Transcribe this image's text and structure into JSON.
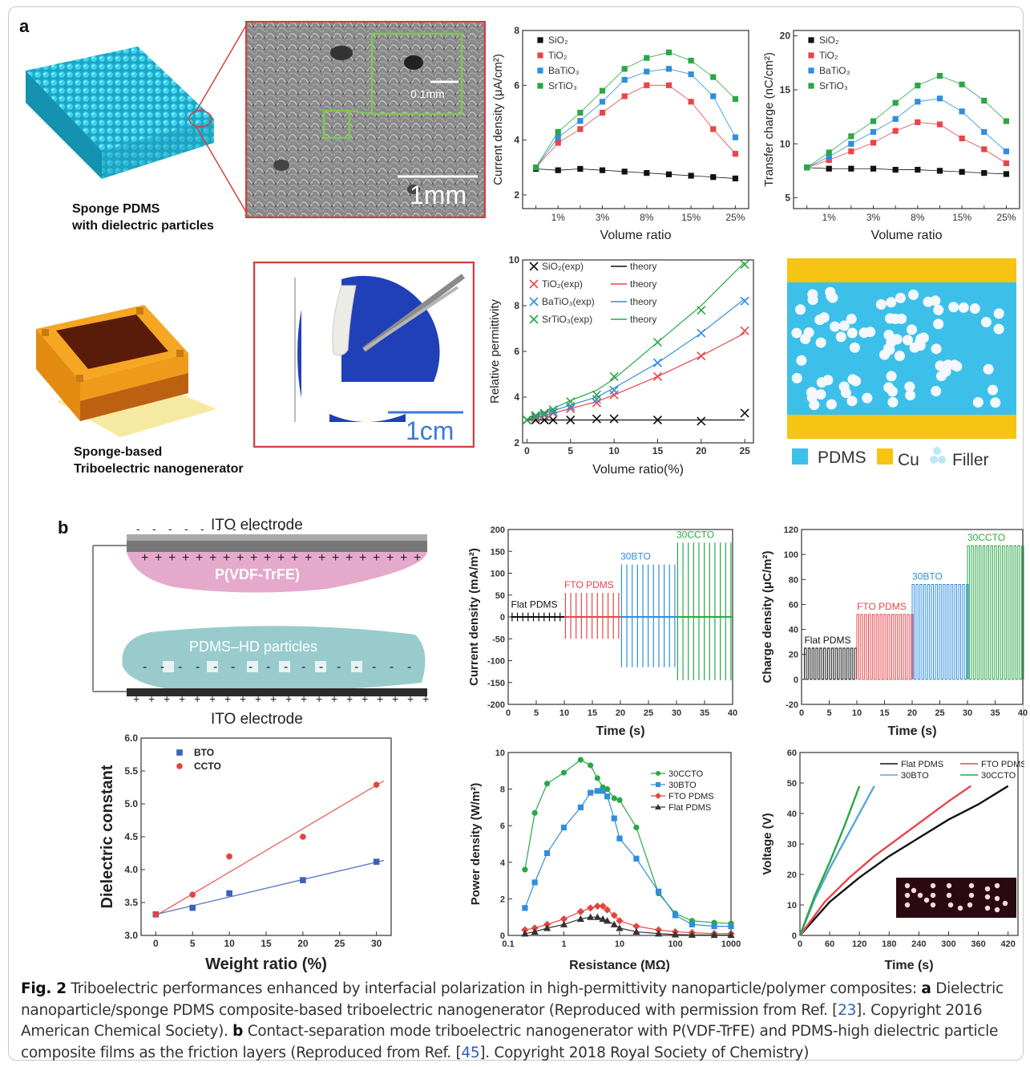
{
  "panel_labels": {
    "a": "a",
    "b": "b"
  },
  "photos": {
    "sponge_label_line1": "Sponge PDMS",
    "sponge_label_line2": "with dielectric particles",
    "teng_label_line1": "Sponge-based",
    "teng_label_line2": "Triboelectric nanogenerator",
    "sem_scale_inset": "0.1mm",
    "sem_scale_main": "1mm",
    "photo_scale": "1cm",
    "schematic_top_electrode": "ITO electrode",
    "schematic_bottom_electrode": "ITO electrode",
    "schematic_top_layer": "P(VDF-TrFE)",
    "schematic_bottom_layer": "PDMS–HD particles"
  },
  "schematic_legend": [
    {
      "label": "PDMS",
      "color": "#3cc0ea"
    },
    {
      "label": "Cu",
      "color": "#f6c412"
    },
    {
      "label": "Filler",
      "color": "#bfe6f5"
    }
  ],
  "colors": {
    "black": "#111111",
    "red": "#e8454b",
    "blue": "#2f8ede",
    "green": "#2aa746",
    "bto_blue": "#3d5fb8",
    "ccto_red": "#e0453e"
  },
  "chart_data": [
    {
      "id": "a_current",
      "type": "line",
      "ylabel": "Current density (μA/cm²)",
      "xlabel": "Volume ratio",
      "categories": [
        "",
        "1%",
        "",
        "3%",
        "",
        "8%",
        "",
        "15%",
        "",
        "25%"
      ],
      "ylim": [
        1.5,
        8
      ],
      "yticks": [
        2,
        4,
        6,
        8
      ],
      "legend": "top-left",
      "series": [
        {
          "name": "SiO₂",
          "color": "#111111",
          "values": [
            2.95,
            2.9,
            2.95,
            2.9,
            2.85,
            2.8,
            2.75,
            2.7,
            2.65,
            2.6
          ]
        },
        {
          "name": "TiO₂",
          "color": "#e8454b",
          "values": [
            3.0,
            3.9,
            4.4,
            5.0,
            5.6,
            6.0,
            6.0,
            5.4,
            4.4,
            3.5
          ]
        },
        {
          "name": "BaTiO₃",
          "color": "#2f8ede",
          "values": [
            3.0,
            4.1,
            4.7,
            5.4,
            6.2,
            6.5,
            6.6,
            6.4,
            5.6,
            4.1
          ]
        },
        {
          "name": "SrTiO₃",
          "color": "#2aa746",
          "values": [
            3.0,
            4.3,
            5.0,
            5.8,
            6.6,
            7.0,
            7.2,
            6.9,
            6.3,
            5.5
          ]
        }
      ]
    },
    {
      "id": "a_charge",
      "type": "line",
      "ylabel": "Transfer charge (nC/cm²)",
      "xlabel": "Volume ratio",
      "categories": [
        "",
        "1%",
        "",
        "3%",
        "",
        "8%",
        "",
        "15%",
        "",
        "25%"
      ],
      "ylim": [
        4,
        20.5
      ],
      "yticks": [
        5,
        10,
        15,
        20
      ],
      "legend": "top-left",
      "series": [
        {
          "name": "SiO₂",
          "color": "#111111",
          "values": [
            7.8,
            7.7,
            7.7,
            7.7,
            7.6,
            7.6,
            7.5,
            7.4,
            7.3,
            7.2
          ]
        },
        {
          "name": "TiO₂",
          "color": "#e8454b",
          "values": [
            7.8,
            8.5,
            9.3,
            10.1,
            11.2,
            12.0,
            11.8,
            10.5,
            9.5,
            8.2
          ]
        },
        {
          "name": "BaTiO₃",
          "color": "#2f8ede",
          "values": [
            7.8,
            8.8,
            10.0,
            11.1,
            12.3,
            13.9,
            14.2,
            13.0,
            11.1,
            9.3
          ]
        },
        {
          "name": "SrTiO₃",
          "color": "#2aa746",
          "values": [
            7.8,
            9.2,
            10.7,
            12.1,
            13.8,
            15.4,
            16.3,
            15.5,
            14.0,
            12.1
          ]
        }
      ]
    },
    {
      "id": "a_permittivity",
      "type": "scatter",
      "ylabel": "Relative permittivity",
      "xlabel": "Volume ratio(%)",
      "xlim": [
        -0.5,
        26
      ],
      "ylim": [
        2,
        10
      ],
      "xticks": [
        0,
        5,
        10,
        15,
        20,
        25
      ],
      "yticks": [
        2,
        4,
        6,
        8,
        10
      ],
      "legend": "top-left",
      "series": [
        {
          "name": "SiO₂(exp)",
          "theory_name": "theory",
          "color": "#111111",
          "x": [
            0,
            1,
            2,
            3,
            5,
            8,
            10,
            15,
            20,
            25
          ],
          "y": [
            3.0,
            3.0,
            3.0,
            3.0,
            3.0,
            3.05,
            3.05,
            3.0,
            2.95,
            3.3
          ],
          "theory": [
            3.0,
            3.0,
            3.0,
            3.0,
            3.0,
            3.0,
            3.0,
            3.0,
            3.0,
            3.0
          ]
        },
        {
          "name": "TiO₂(exp)",
          "theory_name": "theory",
          "color": "#e8454b",
          "x": [
            0,
            1,
            2,
            3,
            5,
            8,
            10,
            15,
            20,
            25
          ],
          "y": [
            3.0,
            3.1,
            3.2,
            3.3,
            3.5,
            3.75,
            4.1,
            4.9,
            5.8,
            6.9
          ],
          "theory": [
            3.0,
            3.1,
            3.2,
            3.3,
            3.5,
            3.8,
            4.1,
            4.9,
            5.8,
            6.8
          ]
        },
        {
          "name": "BaTiO₃(exp)",
          "theory_name": "theory",
          "color": "#2f8ede",
          "x": [
            0,
            1,
            2,
            3,
            5,
            8,
            10,
            15,
            20,
            25
          ],
          "y": [
            3.0,
            3.15,
            3.25,
            3.35,
            3.6,
            3.9,
            4.3,
            5.5,
            6.8,
            8.2
          ],
          "theory": [
            3.0,
            3.15,
            3.3,
            3.4,
            3.65,
            4.0,
            4.4,
            5.5,
            6.8,
            8.3
          ]
        },
        {
          "name": "SrTiO₃(exp)",
          "theory_name": "theory",
          "color": "#2aa746",
          "x": [
            0,
            1,
            2,
            3,
            5,
            8,
            10,
            15,
            20,
            25
          ],
          "y": [
            3.0,
            3.2,
            3.3,
            3.45,
            3.8,
            4.1,
            4.9,
            6.4,
            7.8,
            9.8
          ],
          "theory": [
            3.0,
            3.2,
            3.35,
            3.5,
            3.85,
            4.3,
            4.8,
            6.4,
            8.0,
            9.9
          ]
        }
      ]
    },
    {
      "id": "b_current",
      "type": "line",
      "ylabel": "Current density (mA/m²)",
      "xlabel": "Time (s)",
      "xlim": [
        0,
        40
      ],
      "ylim": [
        -200,
        200
      ],
      "xticks": [
        0,
        5,
        10,
        15,
        20,
        25,
        30,
        35,
        40
      ],
      "yticks": [
        -200,
        -150,
        -100,
        -50,
        0,
        50,
        100,
        150,
        200
      ],
      "segments": [
        {
          "name": "Flat PDMS",
          "color": "#111111",
          "t0": 0.5,
          "t1": 10,
          "amp_pos": 10,
          "amp_neg": -10
        },
        {
          "name": "FTO PDMS",
          "color": "#e8454b",
          "t0": 10,
          "t1": 20,
          "amp_pos": 55,
          "amp_neg": -50
        },
        {
          "name": "30BTO",
          "color": "#2f8ede",
          "t0": 20,
          "t1": 30,
          "amp_pos": 120,
          "amp_neg": -115
        },
        {
          "name": "30CCTO",
          "color": "#2aa746",
          "t0": 30,
          "t1": 40,
          "amp_pos": 170,
          "amp_neg": -145
        }
      ]
    },
    {
      "id": "b_charge",
      "type": "line",
      "ylabel": "Charge density (μC/m²)",
      "xlabel": "Time (s)",
      "xlim": [
        0,
        40
      ],
      "ylim": [
        -20,
        120
      ],
      "xticks": [
        0,
        5,
        10,
        15,
        20,
        25,
        30,
        35,
        40
      ],
      "yticks": [
        -20,
        0,
        20,
        40,
        60,
        80,
        100,
        120
      ],
      "segments": [
        {
          "name": "Flat PDMS",
          "color": "#111111",
          "t0": 0.5,
          "t1": 10,
          "level": 25
        },
        {
          "name": "FTO PDMS",
          "color": "#e8454b",
          "t0": 10,
          "t1": 20,
          "level": 52
        },
        {
          "name": "30BTO",
          "color": "#2f8ede",
          "t0": 20,
          "t1": 30,
          "level": 76
        },
        {
          "name": "30CCTO",
          "color": "#2aa746",
          "t0": 30,
          "t1": 40,
          "level": 107
        }
      ]
    },
    {
      "id": "b_dielectric",
      "type": "scatter",
      "ylabel": "Dielectric constant",
      "xlabel": "Weight ratio (%)",
      "xlim": [
        -2,
        32
      ],
      "ylim": [
        3.0,
        6.0
      ],
      "xticks": [
        0,
        5,
        10,
        15,
        20,
        25,
        30
      ],
      "yticks": [
        3.0,
        3.5,
        4.0,
        4.5,
        5.0,
        5.5,
        6.0
      ],
      "legend": "top-left",
      "series": [
        {
          "name": "BTO",
          "color": "#3d5fb8",
          "marker": "square",
          "x": [
            0,
            5,
            10,
            20,
            30
          ],
          "y": [
            3.32,
            3.42,
            3.64,
            3.84,
            4.12
          ],
          "fit": [
            [
              0,
              3.32
            ],
            [
              31,
              4.14
            ]
          ]
        },
        {
          "name": "CCTO",
          "color": "#e0453e",
          "marker": "circle",
          "x": [
            0,
            5,
            10,
            20,
            30
          ],
          "y": [
            3.32,
            3.62,
            4.2,
            4.5,
            5.29
          ],
          "fit": [
            [
              0,
              3.3
            ],
            [
              31,
              5.35
            ]
          ]
        }
      ]
    },
    {
      "id": "b_power",
      "type": "line",
      "ylabel": "Power density (W/m²)",
      "xlabel": "Resistance (MΩ)",
      "xscale": "log",
      "xlim": [
        0.1,
        1000
      ],
      "ylim": [
        0,
        10
      ],
      "xticks": [
        0.1,
        1,
        10,
        100,
        1000
      ],
      "xtick_labels": [
        "0.1",
        "1",
        "10",
        "100",
        "1000"
      ],
      "yticks": [
        0,
        2,
        4,
        6,
        8,
        10
      ],
      "legend": "top-right",
      "series": [
        {
          "name": "30CCTO",
          "color": "#2aa746",
          "marker": "circle",
          "x": [
            0.2,
            0.3,
            0.5,
            1,
            2,
            3,
            4,
            5,
            6,
            8,
            10,
            20,
            50,
            100,
            200,
            500,
            1000
          ],
          "y": [
            3.6,
            6.7,
            8.3,
            8.9,
            9.6,
            9.3,
            8.6,
            8.1,
            8.0,
            7.5,
            7.4,
            5.9,
            2.3,
            1.2,
            0.8,
            0.7,
            0.65
          ]
        },
        {
          "name": "30BTO",
          "color": "#2f8ede",
          "marker": "square",
          "x": [
            0.2,
            0.3,
            0.5,
            1,
            2,
            3,
            4,
            5,
            6,
            8,
            10,
            20,
            50,
            100,
            200,
            500,
            1000
          ],
          "y": [
            1.5,
            2.9,
            4.5,
            5.9,
            7.0,
            7.8,
            7.9,
            7.9,
            7.6,
            6.4,
            5.3,
            4.2,
            2.4,
            1.1,
            0.6,
            0.5,
            0.5
          ]
        },
        {
          "name": "FTO PDMS",
          "color": "#e0453e",
          "marker": "diamond",
          "x": [
            0.2,
            0.3,
            0.5,
            1,
            2,
            3,
            4,
            5,
            6,
            8,
            10,
            20,
            50,
            100,
            200,
            500,
            1000
          ],
          "y": [
            0.3,
            0.4,
            0.6,
            0.9,
            1.3,
            1.5,
            1.6,
            1.6,
            1.4,
            1.1,
            0.8,
            0.5,
            0.3,
            0.2,
            0.15,
            0.1,
            0.1
          ]
        },
        {
          "name": "Flat PDMS",
          "color": "#333333",
          "marker": "triangle",
          "x": [
            0.2,
            0.3,
            0.5,
            1,
            2,
            3,
            4,
            5,
            6,
            8,
            10,
            20,
            50,
            100,
            200,
            500,
            1000
          ],
          "y": [
            0.1,
            0.2,
            0.4,
            0.6,
            0.9,
            1.0,
            1.0,
            0.9,
            0.8,
            0.6,
            0.4,
            0.2,
            0.1,
            0.05,
            0.03,
            0.02,
            0.02
          ]
        }
      ]
    },
    {
      "id": "b_voltage",
      "type": "line",
      "ylabel": "Voltage (V)",
      "xlabel": "Time (s)",
      "xlim": [
        0,
        440
      ],
      "ylim": [
        0,
        60
      ],
      "xticks": [
        0,
        60,
        120,
        180,
        240,
        300,
        360,
        420
      ],
      "yticks": [
        0,
        10,
        20,
        30,
        40,
        50,
        60
      ],
      "legend": "top",
      "series": [
        {
          "name": "Flat PDMS",
          "color": "#111111",
          "x": [
            0,
            60,
            120,
            180,
            240,
            300,
            360,
            420
          ],
          "y": [
            0,
            11,
            19,
            26,
            32,
            38,
            43,
            49
          ]
        },
        {
          "name": "FTO PDMS",
          "color": "#e8454b",
          "x": [
            0,
            50,
            100,
            150,
            200,
            250,
            300,
            345
          ],
          "y": [
            0,
            11,
            19,
            26,
            32,
            38,
            44,
            49
          ]
        },
        {
          "name": "30BTO",
          "color": "#5aa6d9",
          "x": [
            0,
            30,
            60,
            90,
            120,
            150
          ],
          "y": [
            0,
            12,
            22,
            31,
            40,
            49
          ]
        },
        {
          "name": "30CCTO",
          "color": "#2aa746",
          "x": [
            0,
            30,
            60,
            90,
            120
          ],
          "y": [
            0,
            13,
            24,
            36,
            49
          ]
        }
      ]
    }
  ],
  "caption": {
    "fig": "Fig. 2",
    "p1": "  Triboelectric performances enhanced by interfacial polarization in high-permittivity nanoparticle/polymer composites: ",
    "a": "a",
    "p2": " Dielectric nanoparticle/sponge PDMS composite-based triboelectric nanogenerator (Reproduced with permission from Ref. [",
    "ref1": "23",
    "p3": "]. Copyright 2016 American Chemical Society). ",
    "b": "b",
    "p4": " Contact-separation mode triboelectric nanogenerator with P(VDF-TrFE) and PDMS-high dielectric particle composite films as the friction layers (Reproduced from Ref. [",
    "ref2": "45",
    "p5": "]. Copyright 2018 Royal Society of Chemistry)"
  }
}
